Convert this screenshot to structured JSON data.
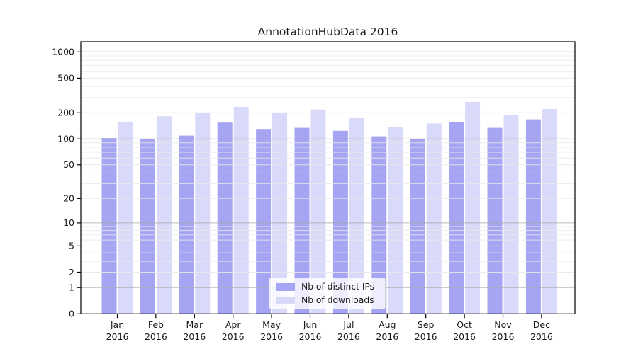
{
  "chart_data": {
    "type": "bar",
    "title": "AnnotationHubData 2016",
    "scale": "log1p",
    "categories": [
      "Jan",
      "Feb",
      "Mar",
      "Apr",
      "May",
      "Jun",
      "Jul",
      "Aug",
      "Sep",
      "Oct",
      "Nov",
      "Dec"
    ],
    "year_label": "2016",
    "series": [
      {
        "name": "Nb of distinct IPs",
        "color": "#a5a5f3",
        "values": [
          102,
          99,
          109,
          154,
          130,
          134,
          124,
          107,
          100,
          156,
          134,
          168
        ]
      },
      {
        "name": "Nb of downloads",
        "color": "#d9d9f9",
        "values": [
          158,
          182,
          201,
          234,
          201,
          218,
          173,
          138,
          151,
          267,
          190,
          221
        ]
      }
    ],
    "y_ticks": [
      0,
      1,
      2,
      5,
      10,
      20,
      50,
      100,
      200,
      500,
      1000
    ],
    "ylim": [
      0,
      1300
    ],
    "xlabel": "",
    "ylabel": "",
    "grid": {
      "visible": true,
      "major_color": "#a9a9a9",
      "minor_color": "#e9e9e9"
    },
    "legend_position": "bottom-center-inside",
    "axis_color": "#000000",
    "text_color": "#1a1a1a"
  }
}
